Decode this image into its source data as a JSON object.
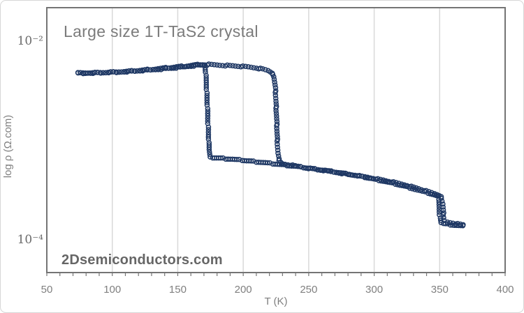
{
  "figure": {
    "watermark": "2Dsemiconductors.com"
  },
  "colors": {
    "background": "#ffffff",
    "figure_border": "#d6d6d6",
    "axis": "#747474",
    "grid": "#d9d9d9",
    "marker": "#1f3864",
    "title": "#7b7b7b",
    "tick_label": "#7f7f7f",
    "y_tick_label": "#6b6b6b",
    "axis_label": "#7f7f7f",
    "watermark": "#666666"
  },
  "chart_data": {
    "type": "scatter",
    "title": "Large size 1T-TaS2 crystal",
    "xlabel": "T (K)",
    "ylabel": "log ρ (Ω.com)",
    "xlim": [
      50,
      400
    ],
    "x_ticks": [
      50,
      100,
      150,
      200,
      250,
      300,
      350,
      400
    ],
    "x_minor_tick_step": 10,
    "x_gridlines": [
      100,
      150,
      200,
      250,
      300,
      350
    ],
    "y_scale": "log",
    "ylim": [
      4.5e-05,
      0.021
    ],
    "y_ticks": [
      {
        "value": 0.01,
        "label": "10⁻²"
      },
      {
        "value": 0.0001,
        "label": "10⁻⁴"
      }
    ],
    "grid": "vertical-only",
    "legend": "none",
    "marker_style": {
      "shape": "open-circle",
      "radius_px": 3,
      "stroke_px": 1.5
    },
    "transitions": {
      "warming_drop_K": 225,
      "cooling_jump_K": 172,
      "high_T_drop_K": 352
    },
    "series": [
      {
        "name": "warming",
        "points": [
          [
            74,
            0.0046
          ],
          [
            85,
            0.00462
          ],
          [
            95,
            0.00466
          ],
          [
            105,
            0.00472
          ],
          [
            115,
            0.0048
          ],
          [
            125,
            0.0049
          ],
          [
            135,
            0.00502
          ],
          [
            145,
            0.00515
          ],
          [
            152,
            0.00526
          ],
          [
            158,
            0.00538
          ],
          [
            164,
            0.0055
          ],
          [
            169,
            0.00558
          ],
          [
            174,
            0.0056
          ],
          [
            180,
            0.00555
          ],
          [
            188,
            0.00548
          ],
          [
            196,
            0.0054
          ],
          [
            204,
            0.0053
          ],
          [
            210,
            0.00518
          ],
          [
            215,
            0.00505
          ],
          [
            219,
            0.00488
          ],
          [
            222,
            0.00462
          ],
          [
            223.5,
            0.0042
          ],
          [
            224.5,
            0.0033
          ],
          [
            225,
            0.0024
          ],
          [
            225.5,
            0.0016
          ],
          [
            226,
            0.001
          ],
          [
            226.5,
            0.00072
          ],
          [
            227.5,
            0.0006
          ],
          [
            230,
            0.00056
          ],
          [
            238,
            0.00054
          ],
          [
            246,
            0.000515
          ],
          [
            255,
            0.000495
          ],
          [
            265,
            0.000472
          ],
          [
            275,
            0.00045
          ],
          [
            285,
            0.00043
          ],
          [
            295,
            0.00041
          ],
          [
            305,
            0.000388
          ],
          [
            315,
            0.000365
          ],
          [
            325,
            0.00034
          ],
          [
            334,
            0.000315
          ],
          [
            342,
            0.000292
          ],
          [
            348,
            0.000275
          ],
          [
            351,
            0.000265
          ],
          [
            352.5,
            0.00022
          ],
          [
            353,
            0.00017
          ],
          [
            353.5,
            0.00015
          ],
          [
            356,
            0.000145
          ],
          [
            360,
            0.000142
          ],
          [
            364,
            0.000139
          ],
          [
            368,
            0.000136
          ]
        ]
      },
      {
        "name": "cooling",
        "points": [
          [
            368,
            0.000132
          ],
          [
            363,
            0.000134
          ],
          [
            358,
            0.000137
          ],
          [
            353,
            0.00014
          ],
          [
            351,
            0.000144
          ],
          [
            350,
            0.00017
          ],
          [
            349.5,
            0.00022
          ],
          [
            349,
            0.000262
          ],
          [
            346,
            0.000272
          ],
          [
            341,
            0.000285
          ],
          [
            333,
            0.000305
          ],
          [
            325,
            0.000328
          ],
          [
            316,
            0.000352
          ],
          [
            307,
            0.000375
          ],
          [
            298,
            0.000398
          ],
          [
            289,
            0.00042
          ],
          [
            280,
            0.000442
          ],
          [
            271,
            0.000462
          ],
          [
            262,
            0.000482
          ],
          [
            253,
            0.0005
          ],
          [
            244,
            0.00052
          ],
          [
            235,
            0.000538
          ],
          [
            226,
            0.000556
          ],
          [
            217,
            0.000574
          ],
          [
            208,
            0.000592
          ],
          [
            199,
            0.00061
          ],
          [
            190,
            0.000626
          ],
          [
            183,
            0.000638
          ],
          [
            178,
            0.000646
          ],
          [
            175,
            0.00065
          ],
          [
            174,
            0.00078
          ],
          [
            173.5,
            0.0011
          ],
          [
            173,
            0.0016
          ],
          [
            172.5,
            0.0023
          ],
          [
            172,
            0.0033
          ],
          [
            171.5,
            0.0044
          ],
          [
            171,
            0.0052
          ],
          [
            170,
            0.00556
          ],
          [
            167,
            0.0056
          ],
          [
            162,
            0.00552
          ],
          [
            155,
            0.0054
          ],
          [
            147,
            0.00528
          ],
          [
            139,
            0.00515
          ],
          [
            131,
            0.00503
          ],
          [
            123,
            0.00492
          ],
          [
            115,
            0.00482
          ],
          [
            107,
            0.00474
          ],
          [
            99,
            0.00468
          ],
          [
            91,
            0.00464
          ],
          [
            83,
            0.00461
          ],
          [
            74,
            0.00459
          ]
        ]
      }
    ]
  }
}
